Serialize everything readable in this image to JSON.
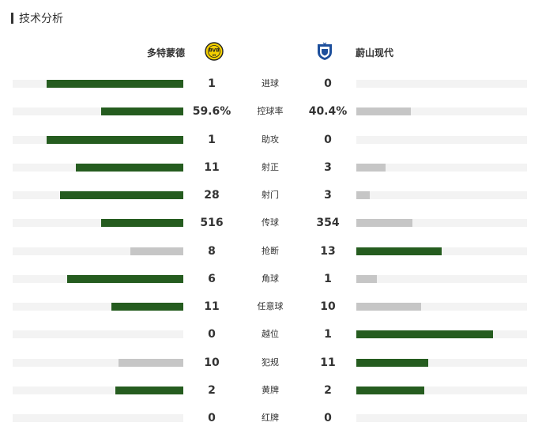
{
  "section": {
    "title": "技术分析"
  },
  "teams": {
    "home": {
      "name": "多特蒙德",
      "crest_icon": "bvb-crest-icon",
      "crest_color": "#f5d000"
    },
    "away": {
      "name": "蔚山现代",
      "crest_icon": "ulsan-crest-icon",
      "crest_color": "#1d4f9c"
    }
  },
  "colors": {
    "leading_bar": "#255c1f",
    "trailing_bar": "#c6c6c6",
    "track": "#f3f3f3"
  },
  "stats": [
    {
      "label": "进球",
      "home": "1",
      "away": "0",
      "home_share": 0.8,
      "away_share": 0.0
    },
    {
      "label": "控球率",
      "home": "59.6%",
      "away": "40.4%",
      "home_share": 0.48,
      "away_share": 0.32
    },
    {
      "label": "助攻",
      "home": "1",
      "away": "0",
      "home_share": 0.8,
      "away_share": 0.0
    },
    {
      "label": "射正",
      "home": "11",
      "away": "3",
      "home_share": 0.63,
      "away_share": 0.17
    },
    {
      "label": "射门",
      "home": "28",
      "away": "3",
      "home_share": 0.72,
      "away_share": 0.08
    },
    {
      "label": "传球",
      "home": "516",
      "away": "354",
      "home_share": 0.48,
      "away_share": 0.33
    },
    {
      "label": "抢断",
      "home": "8",
      "away": "13",
      "home_share": 0.31,
      "away_share": 0.5
    },
    {
      "label": "角球",
      "home": "6",
      "away": "1",
      "home_share": 0.68,
      "away_share": 0.12
    },
    {
      "label": "任意球",
      "home": "11",
      "away": "10",
      "home_share": 0.42,
      "away_share": 0.38
    },
    {
      "label": "越位",
      "home": "0",
      "away": "1",
      "home_share": 0.0,
      "away_share": 0.8
    },
    {
      "label": "犯规",
      "home": "10",
      "away": "11",
      "home_share": 0.38,
      "away_share": 0.42
    },
    {
      "label": "黄牌",
      "home": "2",
      "away": "2",
      "home_share": 0.4,
      "away_share": 0.4
    },
    {
      "label": "红牌",
      "home": "0",
      "away": "0",
      "home_share": 0.0,
      "away_share": 0.0
    }
  ]
}
